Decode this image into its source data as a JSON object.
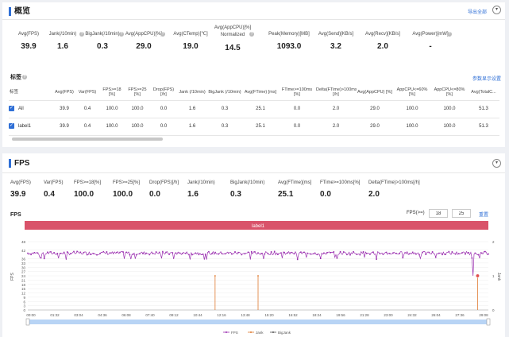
{
  "overview": {
    "title": "概览",
    "export_label": "导出全部",
    "collapse_glyph": "▾",
    "stats": [
      {
        "label": "Avg(FPS)",
        "value": "39.9",
        "help": false
      },
      {
        "label": "Jank(/10min)",
        "value": "1.6",
        "help": true
      },
      {
        "label": "BigJank(/10min)",
        "value": "0.3",
        "help": true
      },
      {
        "label": "Avg(AppCPU)[%]",
        "value": "29.0",
        "help": true
      },
      {
        "label": "Avg(CTemp)[℃]",
        "value": "19.0",
        "help": false
      },
      {
        "label": "Avg(AppCPU)[%] Normalized",
        "value": "14.5",
        "help": true
      },
      {
        "label": "Peak(Memory)[MB]",
        "value": "1093.0",
        "help": false
      },
      {
        "label": "Avg(Send)[KB/s]",
        "value": "3.2",
        "help": false
      },
      {
        "label": "Avg(Recv)[KB/s]",
        "value": "2.0",
        "help": false
      },
      {
        "label": "Avg(Power)[mW]",
        "value": "-",
        "help": true
      }
    ],
    "table_title": "标签",
    "param_settings_label": "参数显示设置",
    "columns": [
      "标签",
      "Avg(FPS)",
      "Var(FPS)",
      "FPS>=18 [%]",
      "FPS>=25 [%]",
      "Drop(FPS) [/h]",
      "Jank (/10min)",
      "BigJank (/10min)",
      "Avg(FTime) [ms]",
      "FTime>=100ms [%]",
      "Delta(FTime)>100ms [/h]",
      "Avg(AppCPU) [%]",
      "AppCPU<=60% [%]",
      "AppCPU<=80% [%]",
      "Avg(TotalC..."
    ],
    "rows": [
      {
        "label": "All",
        "cells": [
          "39.9",
          "0.4",
          "100.0",
          "100.0",
          "0.0",
          "1.6",
          "0.3",
          "25.1",
          "0.0",
          "2.0",
          "29.0",
          "100.0",
          "100.0",
          "51.3"
        ]
      },
      {
        "label": "label1",
        "cells": [
          "39.9",
          "0.4",
          "100.0",
          "100.0",
          "0.0",
          "1.6",
          "0.3",
          "25.1",
          "0.0",
          "2.0",
          "29.0",
          "100.0",
          "100.0",
          "51.3"
        ]
      }
    ]
  },
  "fps_section": {
    "title": "FPS",
    "collapse_glyph": "▾",
    "stats": [
      {
        "label": "Avg(FPS)",
        "value": "39.9"
      },
      {
        "label": "Var(FPS)",
        "value": "0.4"
      },
      {
        "label": "FPS>=18[%]",
        "value": "100.0"
      },
      {
        "label": "FPS>=25[%]",
        "value": "100.0"
      },
      {
        "label": "Drop(FPS)[/h]",
        "value": "0.0"
      },
      {
        "label": "Jank(/10min)",
        "value": "1.6"
      },
      {
        "label": "BigJank(/10min)",
        "value": "0.3"
      },
      {
        "label": "Avg(FTime)[ms]",
        "value": "25.1"
      },
      {
        "label": "FTime>=100ms[%]",
        "value": "0.0"
      },
      {
        "label": "Delta(FTime)>100ms[/h]",
        "value": "2.0"
      }
    ],
    "chart_title": "FPS",
    "fps_threshold_label": "FPS(>=)",
    "threshold_1": "18",
    "threshold_2": "25",
    "reset_label": "重置"
  },
  "chart_data": {
    "type": "line",
    "title": "FPS",
    "label_band": "label1",
    "ylabel_left": "FPS",
    "ylabel_right": "Jank",
    "yticks_left": [
      0,
      3,
      6,
      9,
      12,
      15,
      18,
      21,
      24,
      27,
      30,
      33,
      36,
      42,
      48
    ],
    "yticks_right": [
      0,
      1,
      2
    ],
    "ylim_left": [
      0,
      48
    ],
    "ylim_right": [
      0,
      2
    ],
    "x_ticks": [
      "00:00",
      "01:32",
      "03:04",
      "04:36",
      "06:08",
      "07:40",
      "09:12",
      "10:44",
      "12:16",
      "13:48",
      "15:20",
      "16:52",
      "18:24",
      "19:56",
      "21:28",
      "23:00",
      "24:32",
      "26:04",
      "27:36",
      "29:08"
    ],
    "x_range_min": [
      0,
      30
    ],
    "series": [
      {
        "name": "FPS",
        "color": "#9b30b0",
        "mean": 39.9,
        "typical_range": [
          37,
          41
        ],
        "dips": [
          {
            "t_min": 29.0,
            "y": 24
          }
        ]
      },
      {
        "name": "Jank",
        "color": "#e07a30",
        "events_min": [
          12.2,
          15.0,
          29.3
        ],
        "value": 1
      },
      {
        "name": "BigJank",
        "color": "#555555",
        "events_min": [
          29.3
        ],
        "value": 1
      }
    ],
    "legend_position": "bottom-center"
  }
}
